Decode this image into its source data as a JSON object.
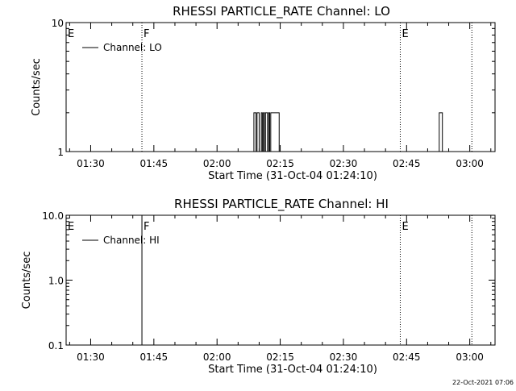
{
  "footer_timestamp": "22-Oct-2021 07:06",
  "colors": {
    "foreground": "#000000",
    "background": "#ffffff"
  },
  "chart_data": [
    {
      "type": "line",
      "title": "RHESSI PARTICLE_RATE Channel: LO",
      "xlabel": "Start Time (31-Oct-04 01:24:10)",
      "ylabel": "Counts/sec",
      "y_scale": "log",
      "ylim": [
        1,
        10
      ],
      "y_ticks": [
        1,
        10
      ],
      "y_tick_labels": [
        "1",
        "10"
      ],
      "xlim_minutes": [
        "01:24:10",
        "03:06:00"
      ],
      "x_ticks": [
        "01:30",
        "01:45",
        "02:00",
        "02:15",
        "02:30",
        "02:45",
        "03:00"
      ],
      "legend": {
        "position": "top-left",
        "entries": [
          "Channel: LO"
        ]
      },
      "markers": [
        {
          "time": "01:24:10",
          "label": "E",
          "style": "solid"
        },
        {
          "time": "01:42:10",
          "label": "F",
          "style": "dotted"
        },
        {
          "time": "02:43:30",
          "label": "E",
          "style": "dotted"
        },
        {
          "time": "03:00:30",
          "label": "",
          "style": "dotted"
        }
      ],
      "series": [
        {
          "name": "Channel: LO",
          "x": [
            "02:08:30",
            "02:08:45",
            "02:09:00",
            "02:09:15",
            "02:09:30",
            "02:09:45",
            "02:10:00",
            "02:10:15",
            "02:10:30",
            "02:10:45",
            "02:11:00",
            "02:11:15",
            "02:11:30",
            "02:11:45",
            "02:12:00",
            "02:12:15",
            "02:12:30",
            "02:12:45",
            "02:13:00",
            "02:13:15",
            "02:13:30",
            "02:13:45",
            "02:14:00",
            "02:14:15",
            "02:14:30",
            "02:14:45",
            "02:52:30",
            "02:52:45",
            "02:53:00",
            "02:53:15",
            "02:53:30"
          ],
          "y": [
            1,
            2,
            2,
            1,
            2,
            2,
            1,
            1,
            2,
            1,
            2,
            1,
            2,
            2,
            1,
            2,
            1,
            2,
            2,
            2,
            2,
            2,
            2,
            2,
            2,
            1,
            1,
            2,
            2,
            2,
            1
          ]
        }
      ]
    },
    {
      "type": "line",
      "title": "RHESSI PARTICLE_RATE Channel: HI",
      "xlabel": "Start Time (31-Oct-04 01:24:10)",
      "ylabel": "Counts/sec",
      "y_scale": "log",
      "ylim": [
        0.1,
        10
      ],
      "y_ticks": [
        0.1,
        1,
        10
      ],
      "y_tick_labels": [
        "0.1",
        "1.0",
        "10.0"
      ],
      "xlim_minutes": [
        "01:24:10",
        "03:06:00"
      ],
      "x_ticks": [
        "01:30",
        "01:45",
        "02:00",
        "02:15",
        "02:30",
        "02:45",
        "03:00"
      ],
      "legend": {
        "position": "top-left",
        "entries": [
          "Channel: HI"
        ]
      },
      "markers": [
        {
          "time": "01:24:10",
          "label": "E",
          "style": "solid"
        },
        {
          "time": "01:42:10",
          "label": "F",
          "style": "solid"
        },
        {
          "time": "02:43:30",
          "label": "E",
          "style": "dotted"
        },
        {
          "time": "03:00:30",
          "label": "",
          "style": "dotted"
        }
      ],
      "series": [
        {
          "name": "Channel: HI",
          "x": [],
          "y": []
        }
      ]
    }
  ]
}
